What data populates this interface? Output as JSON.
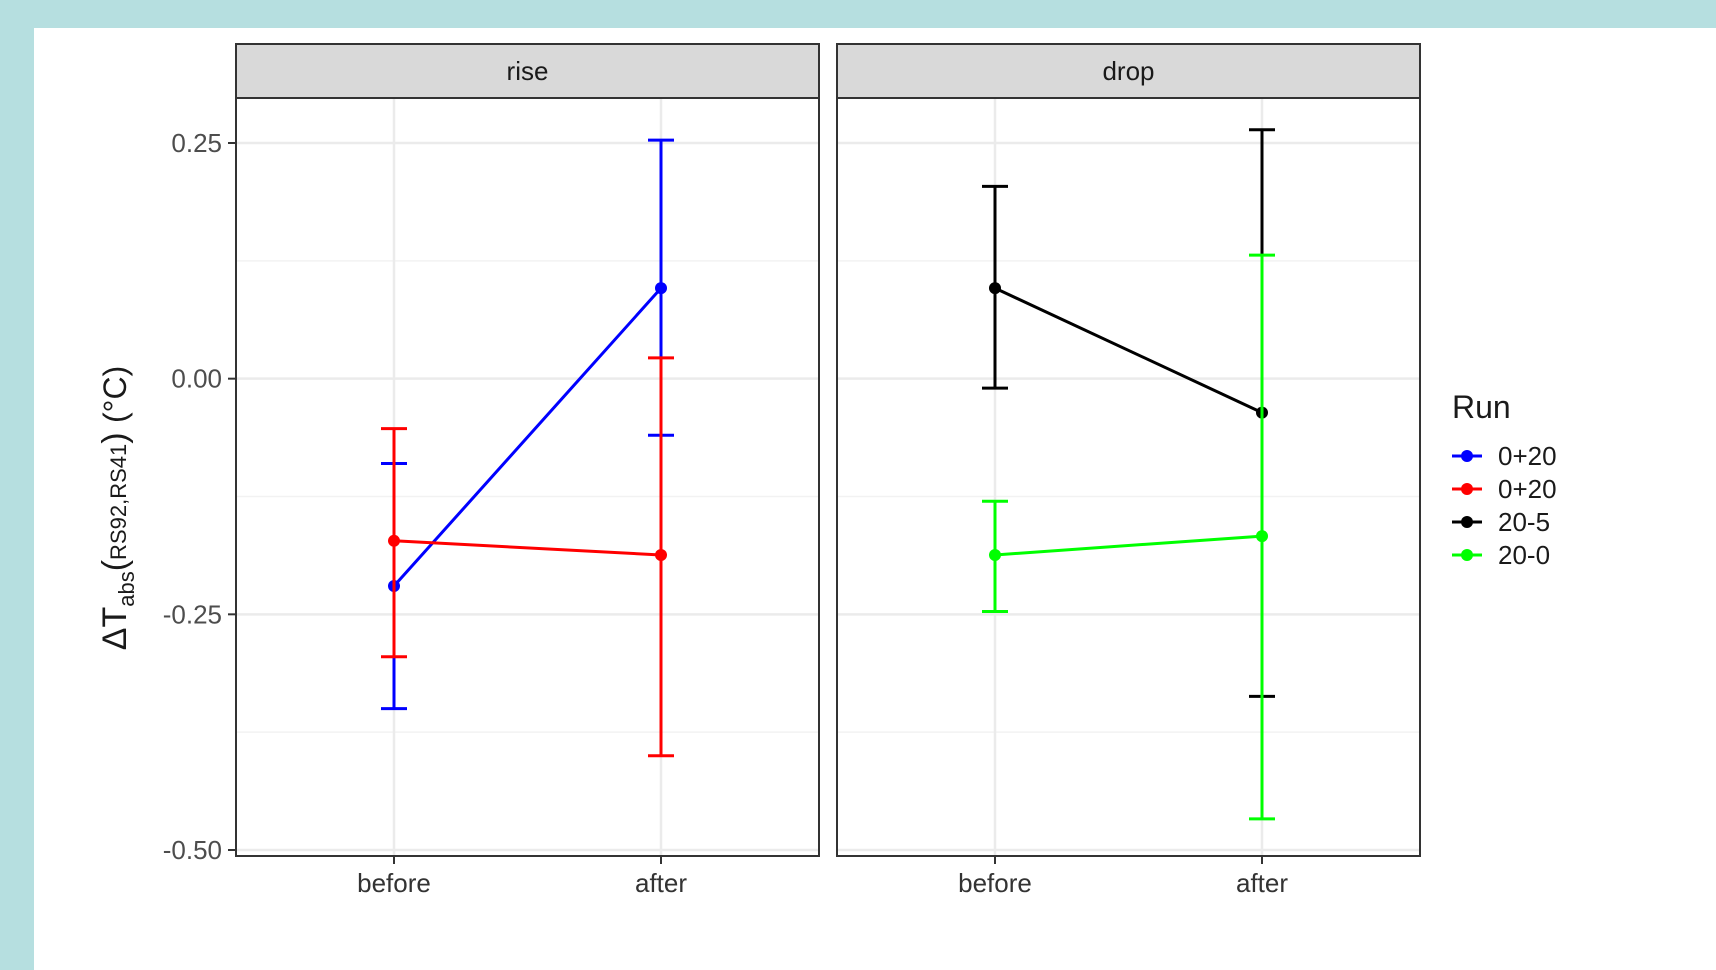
{
  "chart_data": {
    "type": "line",
    "panels": [
      {
        "strip_label": "rise",
        "series": [
          {
            "name": "0+20",
            "color": "#0000ff",
            "x": [
              "before",
              "after"
            ],
            "y": [
              -0.22,
              0.096
            ],
            "err_low": [
              -0.35,
              -0.06
            ],
            "err_high": [
              -0.09,
              0.253
            ]
          },
          {
            "name": "0+20",
            "color": "#ff0000",
            "x": [
              "before",
              "after"
            ],
            "y": [
              -0.172,
              -0.187
            ],
            "err_low": [
              -0.295,
              -0.4
            ],
            "err_high": [
              -0.053,
              0.022
            ]
          }
        ]
      },
      {
        "strip_label": "drop",
        "series": [
          {
            "name": "20-5",
            "color": "#000000",
            "x": [
              "before",
              "after"
            ],
            "y": [
              0.096,
              -0.036
            ],
            "err_low": [
              -0.01,
              -0.337
            ],
            "err_high": [
              0.204,
              0.264
            ]
          },
          {
            "name": "20-0",
            "color": "#00ff00",
            "x": [
              "before",
              "after"
            ],
            "y": [
              -0.187,
              -0.167
            ],
            "err_low": [
              -0.247,
              -0.467
            ],
            "err_high": [
              -0.13,
              0.131
            ]
          }
        ]
      }
    ],
    "categories": [
      "before",
      "after"
    ],
    "ylim": [
      -0.5,
      0.35
    ],
    "yticks": [
      "0.25",
      "0.00",
      "-0.25",
      "-0.50"
    ],
    "ytick_values": [
      0.25,
      0,
      -0.25,
      -0.5
    ],
    "ylabel": {
      "main": "ΔT",
      "subscript": "abs",
      "args": "RS92,RS41",
      "unit": "(°C)"
    },
    "grid": true,
    "legend": {
      "title": "Run",
      "position": "right",
      "entries": [
        {
          "label": "0+20",
          "color": "#0000ff"
        },
        {
          "label": "0+20",
          "color": "#ff0000"
        },
        {
          "label": "20-5",
          "color": "#000000"
        },
        {
          "label": "20-0",
          "color": "#00ff00"
        }
      ]
    }
  }
}
